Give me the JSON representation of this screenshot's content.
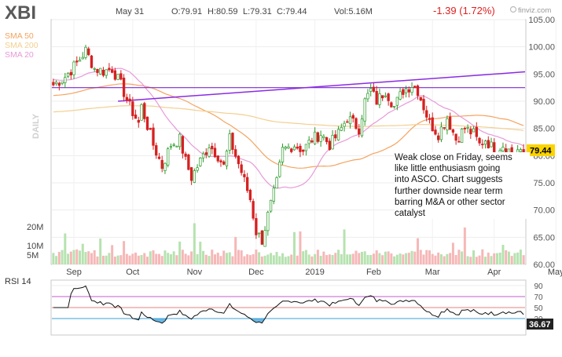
{
  "chart_data": {
    "type": "candlestick",
    "ticker": "XBI",
    "header": {
      "date": "May 31",
      "open": "O:79.91",
      "high": "H:80.59",
      "low": "L:79.31",
      "close": "C:79.44",
      "volume": "Vol:5.16M",
      "change": "-1.39 (1.72%)",
      "watermark": "finviz.com"
    },
    "timeframe_label": "DAILY",
    "legend": [
      {
        "name": "SMA 50",
        "color": "#f4a460"
      },
      {
        "name": "SMA 200",
        "color": "#f7d8a0"
      },
      {
        "name": "SMA 20",
        "color": "#e79ad9"
      }
    ],
    "x_axis": {
      "labels": [
        "Sep",
        "Oct",
        "Nov",
        "Dec",
        "2019",
        "Feb",
        "Mar",
        "Apr",
        "May"
      ],
      "label_positions": [
        7,
        27,
        48,
        69,
        89,
        109,
        129,
        150,
        171
      ]
    },
    "y_axis": {
      "min": 60,
      "max": 105,
      "ticks": [
        60,
        65,
        70,
        75,
        80,
        85,
        90,
        95,
        100,
        105
      ],
      "tick_labels": [
        "60.00",
        "65.00",
        "70.00",
        "75.00",
        "80.00",
        "85.00",
        "90.00",
        "95.00",
        "100.00",
        "105.00"
      ]
    },
    "last_price": {
      "value": 79.44,
      "label": "79.44"
    },
    "horizontal_line": 92.5,
    "trendline": {
      "from": [
        22,
        90.0
      ],
      "to": [
        200,
        95.4
      ]
    },
    "anchors": [
      [
        0,
        93.0
      ],
      [
        4,
        94.5
      ],
      [
        8,
        97.0
      ],
      [
        11,
        99.3
      ],
      [
        14,
        96.0
      ],
      [
        17,
        95.5
      ],
      [
        20,
        96.0
      ],
      [
        23,
        93.0
      ],
      [
        26,
        89.0
      ],
      [
        29,
        86.0
      ],
      [
        30,
        89.0
      ],
      [
        32,
        85.5
      ],
      [
        34,
        82.0
      ],
      [
        37,
        78.0
      ],
      [
        40,
        82.0
      ],
      [
        43,
        83.0
      ],
      [
        45,
        79.0
      ],
      [
        47,
        76.0
      ],
      [
        50,
        79.0
      ],
      [
        53,
        82.0
      ],
      [
        56,
        80.0
      ],
      [
        58,
        78.0
      ],
      [
        60,
        83.0
      ],
      [
        62,
        80.0
      ],
      [
        64,
        77.0
      ],
      [
        67,
        72.0
      ],
      [
        69,
        66.0
      ],
      [
        71,
        64.5
      ],
      [
        73,
        69.0
      ],
      [
        76,
        75.0
      ],
      [
        78,
        81.0
      ],
      [
        82,
        82.0
      ],
      [
        85,
        81.0
      ],
      [
        88,
        83.0
      ],
      [
        91,
        84.0
      ],
      [
        94,
        82.0
      ],
      [
        97,
        84.0
      ],
      [
        100,
        87.0
      ],
      [
        104,
        85.0
      ],
      [
        106,
        90.0
      ],
      [
        108,
        92.0
      ],
      [
        110,
        90.0
      ],
      [
        113,
        92.0
      ],
      [
        116,
        89.0
      ],
      [
        119,
        92.0
      ],
      [
        122,
        93.0
      ],
      [
        124,
        92.0
      ],
      [
        126,
        89.0
      ],
      [
        128,
        86.0
      ],
      [
        131,
        84.0
      ],
      [
        134,
        87.0
      ],
      [
        137,
        83.0
      ],
      [
        140,
        85.0
      ],
      [
        143,
        84.0
      ],
      [
        145,
        82.0
      ],
      [
        147,
        83.0
      ],
      [
        150,
        81.0
      ],
      [
        153,
        82.0
      ],
      [
        156,
        80.5
      ],
      [
        158,
        81.0
      ],
      [
        160,
        79.44
      ]
    ],
    "ohlc_count": 161,
    "volume": {
      "labels": [
        "20M",
        "10M",
        "5M"
      ],
      "values": [
        20,
        10,
        5
      ],
      "max": 25
    },
    "rsi": {
      "title": "RSI 14",
      "last_label": "36.67",
      "ticks": [
        30,
        50,
        70,
        90
      ],
      "tick_labels": [
        "30",
        "50",
        "70",
        "90"
      ],
      "bands": [
        30,
        70
      ],
      "mid_line": 50,
      "max": 100
    }
  },
  "annotation": {
    "lines": [
      "Weak close on Friday, seems",
      "like little enthusiasm going",
      "into ASCO. Chart suggests",
      "further downside near term",
      "barring M&A or other sector",
      "catalyst"
    ]
  }
}
